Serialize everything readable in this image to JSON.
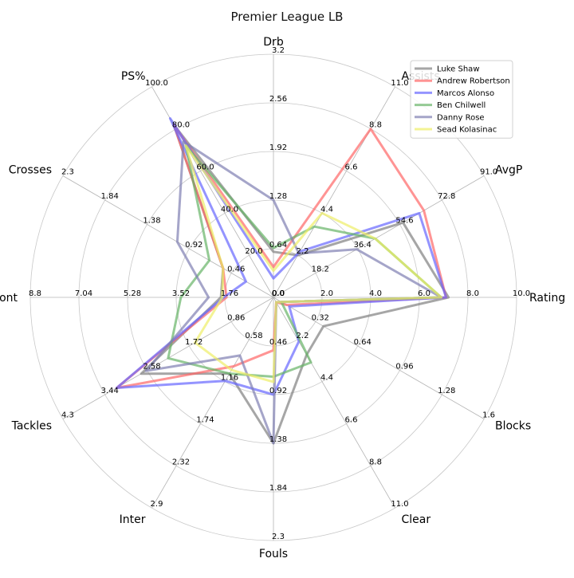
{
  "chart_data": {
    "type": "radar",
    "title": "Premier League LB",
    "axes": [
      {
        "name": "Drb",
        "max": 3.2,
        "ticks": [
          "0.0",
          "0.64",
          "1.28",
          "1.92",
          "2.56",
          "3.2"
        ]
      },
      {
        "name": "Assists",
        "max": 11.0,
        "ticks": [
          "0.0",
          "2.2",
          "4.4",
          "6.6",
          "8.8",
          "11.0"
        ]
      },
      {
        "name": "AvgP",
        "max": 91.0,
        "ticks": [
          "0.0",
          "18.2",
          "36.4",
          "54.6",
          "72.8",
          "91.0"
        ]
      },
      {
        "name": "Rating",
        "max": 10.0,
        "ticks": [
          "0.0",
          "2.0",
          "4.0",
          "6.0",
          "8.0",
          "10.0"
        ]
      },
      {
        "name": "Blocks",
        "max": 1.6,
        "ticks": [
          "0.0",
          "0.32",
          "0.64",
          "0.96",
          "1.28",
          "1.6"
        ]
      },
      {
        "name": "Clear",
        "max": 11.0,
        "ticks": [
          "0.0",
          "2.2",
          "4.4",
          "6.6",
          "8.8",
          "11.0"
        ]
      },
      {
        "name": "Fouls",
        "max": 2.3,
        "ticks": [
          "0.0",
          "0.46",
          "0.92",
          "1.38",
          "1.84",
          "2.3"
        ]
      },
      {
        "name": "Inter",
        "max": 2.9,
        "ticks": [
          "0.0",
          "0.58",
          "1.16",
          "1.74",
          "2.32",
          "2.9"
        ]
      },
      {
        "name": "Tackles",
        "max": 4.3,
        "ticks": [
          "0.0",
          "0.86",
          "1.72",
          "2.58",
          "3.44",
          "4.3"
        ]
      },
      {
        "name": "Dis_cont",
        "max": 8.8,
        "ticks": [
          "0.0",
          "1.76",
          "3.52",
          "5.28",
          "7.04",
          "8.8"
        ]
      },
      {
        "name": "Crosses",
        "max": 2.3,
        "ticks": [
          "0.0",
          "0.46",
          "0.92",
          "1.38",
          "1.84",
          "2.3"
        ]
      },
      {
        "name": "PS%",
        "max": 100.0,
        "ticks": [
          "0.0",
          "20.0",
          "40.0",
          "60.0",
          "80.0",
          "100.0"
        ]
      }
    ],
    "series": [
      {
        "name": "Luke Shaw",
        "color": "#808080",
        "values": [
          0.6,
          2.2,
          56.0,
          7.2,
          0.38,
          3.0,
          1.38,
          1.05,
          2.7,
          1.9,
          0.55,
          82.0
        ]
      },
      {
        "name": "Andrew Robertson",
        "color": "#ff6666",
        "values": [
          0.4,
          8.8,
          65.0,
          7.1,
          0.1,
          0.25,
          0.5,
          0.95,
          3.2,
          1.7,
          0.55,
          82.0
        ]
      },
      {
        "name": "Marcos Alonso",
        "color": "#6666ff",
        "values": [
          0.25,
          2.4,
          63.0,
          7.1,
          0.12,
          2.3,
          0.92,
          1.15,
          3.2,
          1.8,
          0.3,
          85.0
        ]
      },
      {
        "name": "Ben Chilwell",
        "color": "#66b366",
        "values": [
          0.65,
          3.7,
          44.0,
          6.9,
          0.06,
          3.4,
          0.75,
          1.05,
          2.15,
          3.35,
          0.7,
          72.0
        ]
      },
      {
        "name": "Danny Rose",
        "color": "#7f7fb2",
        "values": [
          1.28,
          2.3,
          36.0,
          6.9,
          0.06,
          0.25,
          1.38,
          0.8,
          2.6,
          2.35,
          1.05,
          74.0
        ]
      },
      {
        "name": "Sead Kolasinac",
        "color": "#eeee66",
        "values": [
          0.35,
          4.4,
          44.0,
          6.9,
          0.06,
          0.25,
          0.8,
          1.0,
          1.6,
          1.85,
          0.55,
          72.0
        ]
      }
    ],
    "grid": true,
    "legend_position": "top-right"
  }
}
